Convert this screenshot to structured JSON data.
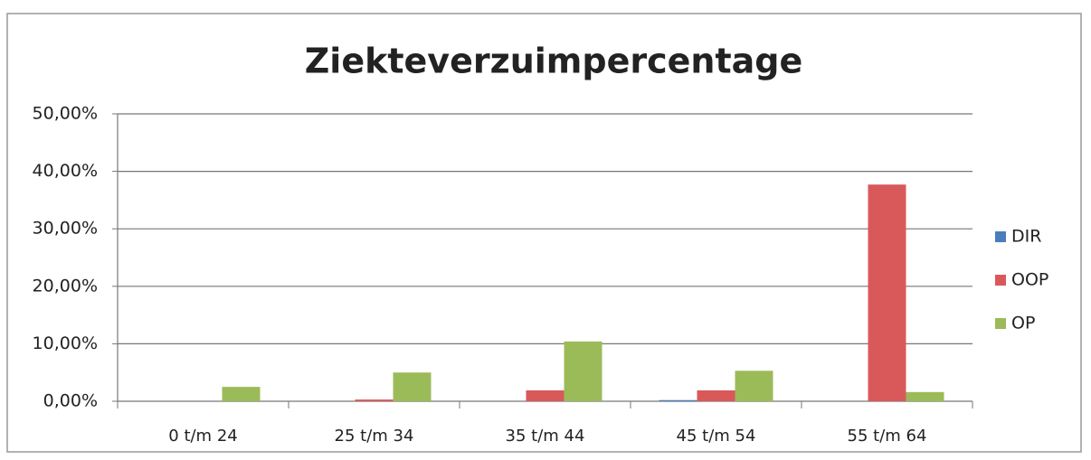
{
  "chart_data": {
    "type": "bar",
    "title": "Ziekteverzuimpercentage",
    "categories": [
      "0 t/m 24",
      "25 t/m 34",
      "35 t/m 44",
      "45 t/m 54",
      "55 t/m 64"
    ],
    "series": [
      {
        "name": "DIR",
        "color": "#4a7ebb",
        "values": [
          0,
          0,
          0,
          0.2,
          0
        ]
      },
      {
        "name": "OOP",
        "color": "#d9595b",
        "values": [
          0,
          0.3,
          1.9,
          1.9,
          37.7
        ]
      },
      {
        "name": "OP",
        "color": "#9bbb59",
        "values": [
          2.5,
          5.0,
          10.4,
          5.3,
          1.6
        ]
      }
    ],
    "ylim": [
      0,
      50
    ],
    "yticks": [
      {
        "value": 0,
        "label": "0,00%"
      },
      {
        "value": 10,
        "label": "10,00%"
      },
      {
        "value": 20,
        "label": "20,00%"
      },
      {
        "value": 30,
        "label": "30,00%"
      },
      {
        "value": 40,
        "label": "40,00%"
      },
      {
        "value": 50,
        "label": "50,00%"
      }
    ],
    "grid": true,
    "legend": "right"
  }
}
